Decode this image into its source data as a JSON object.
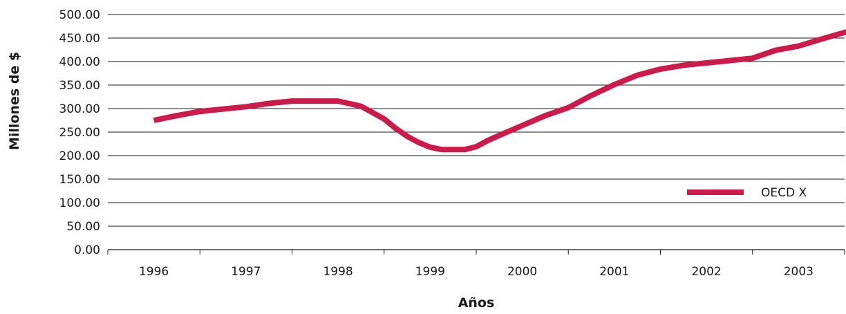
{
  "chart_data": {
    "type": "line",
    "xlabel": "Años",
    "ylabel": "Millones de $",
    "categories": [
      "1996",
      "1997",
      "1998",
      "1999",
      "2000",
      "2001",
      "2002",
      "2003"
    ],
    "ylim": [
      0,
      500
    ],
    "yticks": [
      "0.00",
      "50.00",
      "100.00",
      "150.00",
      "200.00",
      "250.00",
      "300.00",
      "350.00",
      "400.00",
      "450.00",
      "500.00"
    ],
    "grid": true,
    "legend_position": "right",
    "series": [
      {
        "name": "OECD X",
        "color": "#cc1a4a",
        "points": [
          {
            "x": 0.0,
            "y": 275
          },
          {
            "x": 0.25,
            "y": 285
          },
          {
            "x": 0.5,
            "y": 294
          },
          {
            "x": 0.75,
            "y": 299
          },
          {
            "x": 1.0,
            "y": 304
          },
          {
            "x": 1.25,
            "y": 311
          },
          {
            "x": 1.5,
            "y": 316
          },
          {
            "x": 1.75,
            "y": 316
          },
          {
            "x": 2.0,
            "y": 316
          },
          {
            "x": 2.25,
            "y": 305
          },
          {
            "x": 2.5,
            "y": 278
          },
          {
            "x": 2.625,
            "y": 258
          },
          {
            "x": 2.75,
            "y": 241
          },
          {
            "x": 2.875,
            "y": 228
          },
          {
            "x": 3.0,
            "y": 218
          },
          {
            "x": 3.125,
            "y": 213
          },
          {
            "x": 3.25,
            "y": 213
          },
          {
            "x": 3.375,
            "y": 213
          },
          {
            "x": 3.5,
            "y": 219
          },
          {
            "x": 3.625,
            "y": 232
          },
          {
            "x": 3.75,
            "y": 243
          },
          {
            "x": 4.0,
            "y": 264
          },
          {
            "x": 4.25,
            "y": 285
          },
          {
            "x": 4.5,
            "y": 302
          },
          {
            "x": 4.75,
            "y": 328
          },
          {
            "x": 5.0,
            "y": 351
          },
          {
            "x": 5.25,
            "y": 371
          },
          {
            "x": 5.5,
            "y": 384
          },
          {
            "x": 5.75,
            "y": 392
          },
          {
            "x": 6.0,
            "y": 397
          },
          {
            "x": 6.25,
            "y": 402
          },
          {
            "x": 6.5,
            "y": 407
          },
          {
            "x": 6.75,
            "y": 424
          },
          {
            "x": 7.0,
            "y": 433
          },
          {
            "x": 7.25,
            "y": 448
          },
          {
            "x": 7.5,
            "y": 462
          },
          {
            "x": 7.75,
            "y": 469
          }
        ]
      }
    ]
  }
}
